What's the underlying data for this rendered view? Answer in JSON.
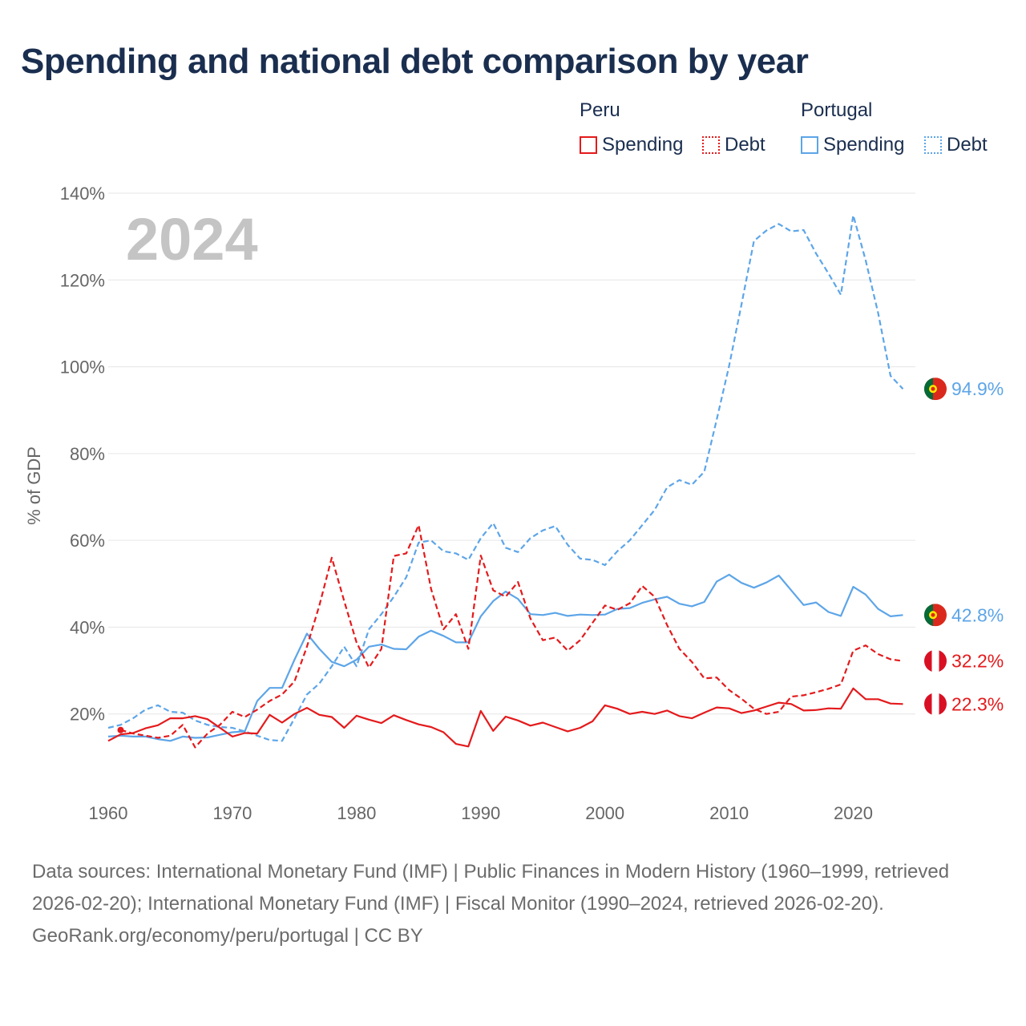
{
  "title": "Spending and national debt comparison by year",
  "legend": {
    "groups": [
      {
        "name": "Peru",
        "color": "#e41a1c",
        "items": [
          {
            "label": "Spending",
            "style": "solid"
          },
          {
            "label": "Debt",
            "style": "dotted"
          }
        ]
      },
      {
        "name": "Portugal",
        "color": "#5da5e8",
        "items": [
          {
            "label": "Spending",
            "style": "solid"
          },
          {
            "label": "Debt",
            "style": "dotted"
          }
        ]
      }
    ]
  },
  "footer": {
    "sources": "Data sources: International Monetary Fund (IMF) | Public Finances in Modern History (1960–1999, retrieved 2026-02-20); International Monetary Fund (IMF) | Fiscal Monitor (1990–2024, retrieved 2026-02-20).",
    "credit": "GeoRank.org/economy/peru/portugal | CC BY"
  },
  "chart_data": {
    "type": "line",
    "title": "Spending and national debt comparison by year",
    "year_label": "2024",
    "xlabel": "",
    "ylabel": "% of GDP",
    "xlim": [
      1960,
      2025
    ],
    "ylim": [
      0,
      140
    ],
    "x_ticks": [
      1960,
      1970,
      1980,
      1990,
      2000,
      2010,
      2020
    ],
    "y_ticks": [
      20,
      40,
      60,
      80,
      100,
      120,
      140
    ],
    "y_tick_labels": [
      "20%",
      "40%",
      "60%",
      "80%",
      "100%",
      "120%",
      "140%"
    ],
    "grid": true,
    "series": [
      {
        "name": "Portugal Debt",
        "country": "Portugal",
        "metric": "Debt",
        "color": "#5da5e8",
        "dash": "dashed",
        "end_label": "94.9%",
        "flag": "portugal",
        "points": [
          [
            1960,
            16.8
          ],
          [
            1961,
            17.5
          ],
          [
            1962,
            19
          ],
          [
            1963,
            21
          ],
          [
            1964,
            22
          ],
          [
            1965,
            20.5
          ],
          [
            1966,
            20.3
          ],
          [
            1967,
            18.5
          ],
          [
            1968,
            17.5
          ],
          [
            1969,
            17
          ],
          [
            1970,
            16.8
          ],
          [
            1971,
            16
          ],
          [
            1972,
            15
          ],
          [
            1973,
            14
          ],
          [
            1974,
            13.8
          ],
          [
            1975,
            19
          ],
          [
            1976,
            24.5
          ],
          [
            1977,
            27
          ],
          [
            1978,
            31
          ],
          [
            1979,
            35.5
          ],
          [
            1980,
            31
          ],
          [
            1981,
            39.5
          ],
          [
            1982,
            43
          ],
          [
            1983,
            47
          ],
          [
            1984,
            51.5
          ],
          [
            1985,
            59.5
          ],
          [
            1986,
            60
          ],
          [
            1987,
            57.5
          ],
          [
            1988,
            57
          ],
          [
            1989,
            55.5
          ],
          [
            1990,
            60.5
          ],
          [
            1991,
            64
          ],
          [
            1992,
            58.3
          ],
          [
            1993,
            57.3
          ],
          [
            1994,
            60.5
          ],
          [
            1995,
            62.3
          ],
          [
            1996,
            63.3
          ],
          [
            1997,
            59
          ],
          [
            1998,
            55.8
          ],
          [
            1999,
            55.5
          ],
          [
            2000,
            54.3
          ],
          [
            2001,
            57.5
          ],
          [
            2002,
            60
          ],
          [
            2003,
            63.5
          ],
          [
            2004,
            67
          ],
          [
            2005,
            72.2
          ],
          [
            2006,
            73.9
          ],
          [
            2007,
            72.8
          ],
          [
            2008,
            75.8
          ],
          [
            2009,
            87.8
          ],
          [
            2010,
            100.2
          ],
          [
            2011,
            114.4
          ],
          [
            2012,
            129
          ],
          [
            2013,
            131.4
          ],
          [
            2014,
            132.9
          ],
          [
            2015,
            131.2
          ],
          [
            2016,
            131.5
          ],
          [
            2017,
            126.1
          ],
          [
            2018,
            121.5
          ],
          [
            2019,
            116.6
          ],
          [
            2020,
            134.9
          ],
          [
            2021,
            124.5
          ],
          [
            2022,
            112.4
          ],
          [
            2023,
            97.9
          ],
          [
            2024,
            94.9
          ]
        ]
      },
      {
        "name": "Portugal Spending",
        "country": "Portugal",
        "metric": "Spending",
        "color": "#5da5e8",
        "dash": "solid",
        "end_label": "42.8%",
        "flag": "portugal",
        "points": [
          [
            1960,
            14.8
          ],
          [
            1961,
            15
          ],
          [
            1962,
            14.8
          ],
          [
            1963,
            14.8
          ],
          [
            1964,
            14.2
          ],
          [
            1965,
            13.8
          ],
          [
            1966,
            14.8
          ],
          [
            1967,
            14.5
          ],
          [
            1968,
            14.6
          ],
          [
            1969,
            15.2
          ],
          [
            1970,
            15.8
          ],
          [
            1971,
            16
          ],
          [
            1972,
            23
          ],
          [
            1973,
            26
          ],
          [
            1974,
            26
          ],
          [
            1975,
            32.5
          ],
          [
            1976,
            38.5
          ],
          [
            1977,
            35
          ],
          [
            1978,
            32
          ],
          [
            1979,
            31
          ],
          [
            1980,
            32.5
          ],
          [
            1981,
            35.5
          ],
          [
            1982,
            36
          ],
          [
            1983,
            35
          ],
          [
            1984,
            34.9
          ],
          [
            1985,
            37.8
          ],
          [
            1986,
            39.2
          ],
          [
            1987,
            38
          ],
          [
            1988,
            36.5
          ],
          [
            1989,
            36.5
          ],
          [
            1990,
            42.5
          ],
          [
            1991,
            46
          ],
          [
            1992,
            48.2
          ],
          [
            1993,
            46.5
          ],
          [
            1994,
            43
          ],
          [
            1995,
            42.8
          ],
          [
            1996,
            43.3
          ],
          [
            1997,
            42.6
          ],
          [
            1998,
            42.9
          ],
          [
            1999,
            42.8
          ],
          [
            2000,
            42.9
          ],
          [
            2001,
            44.2
          ],
          [
            2002,
            44.4
          ],
          [
            2003,
            45.6
          ],
          [
            2004,
            46.4
          ],
          [
            2005,
            47
          ],
          [
            2006,
            45.4
          ],
          [
            2007,
            44.8
          ],
          [
            2008,
            45.8
          ],
          [
            2009,
            50.5
          ],
          [
            2010,
            52.1
          ],
          [
            2011,
            50.2
          ],
          [
            2012,
            49.1
          ],
          [
            2013,
            50.3
          ],
          [
            2014,
            51.9
          ],
          [
            2015,
            48.5
          ],
          [
            2016,
            45.1
          ],
          [
            2017,
            45.7
          ],
          [
            2018,
            43.5
          ],
          [
            2019,
            42.6
          ],
          [
            2020,
            49.3
          ],
          [
            2021,
            47.5
          ],
          [
            2022,
            44.2
          ],
          [
            2023,
            42.5
          ],
          [
            2024,
            42.8
          ]
        ]
      },
      {
        "name": "Peru Debt",
        "country": "Peru",
        "metric": "Debt",
        "color": "#e41a1c",
        "dash": "dashed",
        "end_label": "32.2%",
        "flag": "peru",
        "start_marker": true,
        "points": [
          [
            1961,
            16.3
          ],
          [
            1962,
            15.5
          ],
          [
            1963,
            15
          ],
          [
            1964,
            14.5
          ],
          [
            1965,
            15
          ],
          [
            1966,
            17.5
          ],
          [
            1967,
            12.3
          ],
          [
            1968,
            15.5
          ],
          [
            1969,
            17.5
          ],
          [
            1970,
            20.5
          ],
          [
            1971,
            19.3
          ],
          [
            1972,
            21
          ],
          [
            1973,
            23
          ],
          [
            1974,
            24.5
          ],
          [
            1975,
            27.5
          ],
          [
            1976,
            35.5
          ],
          [
            1977,
            45
          ],
          [
            1978,
            56
          ],
          [
            1979,
            46
          ],
          [
            1980,
            36.5
          ],
          [
            1981,
            30.7
          ],
          [
            1982,
            35
          ],
          [
            1983,
            56.4
          ],
          [
            1984,
            57
          ],
          [
            1985,
            63.5
          ],
          [
            1986,
            48.8
          ],
          [
            1987,
            39.5
          ],
          [
            1988,
            43
          ],
          [
            1989,
            35
          ],
          [
            1990,
            56.5
          ],
          [
            1991,
            48.5
          ],
          [
            1992,
            47
          ],
          [
            1993,
            50.4
          ],
          [
            1994,
            42
          ],
          [
            1995,
            37
          ],
          [
            1996,
            37.6
          ],
          [
            1997,
            34.6
          ],
          [
            1998,
            37
          ],
          [
            1999,
            41
          ],
          [
            2000,
            45
          ],
          [
            2001,
            44
          ],
          [
            2002,
            45.5
          ],
          [
            2003,
            49.5
          ],
          [
            2004,
            47
          ],
          [
            2005,
            40.5
          ],
          [
            2006,
            35
          ],
          [
            2007,
            32
          ],
          [
            2008,
            28.2
          ],
          [
            2009,
            28.4
          ],
          [
            2010,
            25.5
          ],
          [
            2011,
            23.5
          ],
          [
            2012,
            21.2
          ],
          [
            2013,
            20
          ],
          [
            2014,
            20.5
          ],
          [
            2015,
            24
          ],
          [
            2016,
            24.3
          ],
          [
            2017,
            25
          ],
          [
            2018,
            25.8
          ],
          [
            2019,
            26.8
          ],
          [
            2020,
            34.6
          ],
          [
            2021,
            35.8
          ],
          [
            2022,
            33.8
          ],
          [
            2023,
            32.6
          ],
          [
            2024,
            32.2
          ]
        ]
      },
      {
        "name": "Peru Spending",
        "country": "Peru",
        "metric": "Spending",
        "color": "#e41a1c",
        "dash": "solid",
        "end_label": "22.3%",
        "flag": "peru",
        "points": [
          [
            1960,
            13.8
          ],
          [
            1961,
            15.3
          ],
          [
            1962,
            15.6
          ],
          [
            1963,
            16.7
          ],
          [
            1964,
            17.4
          ],
          [
            1965,
            19
          ],
          [
            1966,
            19
          ],
          [
            1967,
            19.5
          ],
          [
            1968,
            18.8
          ],
          [
            1969,
            16.8
          ],
          [
            1970,
            14.8
          ],
          [
            1971,
            15.6
          ],
          [
            1972,
            15.5
          ],
          [
            1973,
            19.8
          ],
          [
            1974,
            18
          ],
          [
            1975,
            20
          ],
          [
            1976,
            21.4
          ],
          [
            1977,
            19.8
          ],
          [
            1978,
            19.3
          ],
          [
            1979,
            16.8
          ],
          [
            1980,
            19.6
          ],
          [
            1981,
            18.7
          ],
          [
            1982,
            17.9
          ],
          [
            1983,
            19.7
          ],
          [
            1984,
            18.6
          ],
          [
            1985,
            17.6
          ],
          [
            1986,
            17
          ],
          [
            1987,
            15.8
          ],
          [
            1988,
            13.1
          ],
          [
            1989,
            12.5
          ],
          [
            1990,
            20.7
          ],
          [
            1991,
            16.1
          ],
          [
            1992,
            19.4
          ],
          [
            1993,
            18.5
          ],
          [
            1994,
            17.3
          ],
          [
            1995,
            18
          ],
          [
            1996,
            17
          ],
          [
            1997,
            16
          ],
          [
            1998,
            16.8
          ],
          [
            1999,
            18.3
          ],
          [
            2000,
            22
          ],
          [
            2001,
            21.2
          ],
          [
            2002,
            20
          ],
          [
            2003,
            20.5
          ],
          [
            2004,
            20
          ],
          [
            2005,
            20.8
          ],
          [
            2006,
            19.5
          ],
          [
            2007,
            19
          ],
          [
            2008,
            20.3
          ],
          [
            2009,
            21.5
          ],
          [
            2010,
            21.3
          ],
          [
            2011,
            20.2
          ],
          [
            2012,
            20.8
          ],
          [
            2013,
            21.7
          ],
          [
            2014,
            22.6
          ],
          [
            2015,
            22.3
          ],
          [
            2016,
            20.8
          ],
          [
            2017,
            20.9
          ],
          [
            2018,
            21.3
          ],
          [
            2019,
            21.2
          ],
          [
            2020,
            25.9
          ],
          [
            2021,
            23.4
          ],
          [
            2022,
            23.4
          ],
          [
            2023,
            22.4
          ],
          [
            2024,
            22.3
          ]
        ]
      }
    ]
  }
}
